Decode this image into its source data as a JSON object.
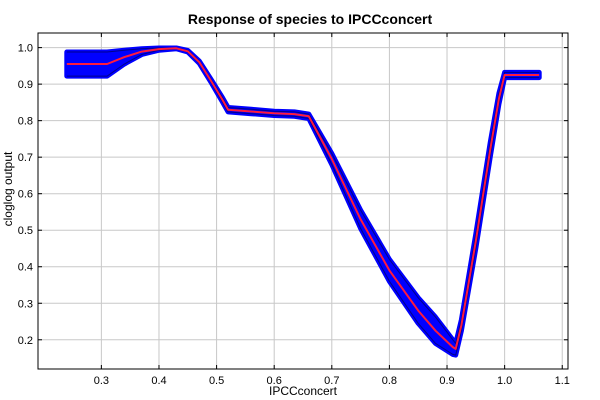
{
  "chart_data": {
    "type": "line",
    "title": "Response of species to IPCCconcert",
    "xlabel": "IPCCconcert",
    "ylabel": "cloglog output",
    "xlim": [
      0.19,
      1.11
    ],
    "ylim": [
      0.12,
      1.04
    ],
    "xticks": [
      0.3,
      0.4,
      0.5,
      0.6,
      0.7,
      0.8,
      0.9,
      1.0,
      1.1
    ],
    "xtick_labels": [
      "0.3",
      "0.4",
      "0.5",
      "0.6",
      "0.7",
      "0.8",
      "0.9",
      "1.0",
      "1.1"
    ],
    "yticks": [
      0.2,
      0.3,
      0.4,
      0.5,
      0.6,
      0.7,
      0.8,
      0.9,
      1.0
    ],
    "ytick_labels": [
      "0.2",
      "0.3",
      "0.4",
      "0.5",
      "0.6",
      "0.7",
      "0.8",
      "0.9",
      "1.0"
    ],
    "grid": true,
    "colors": {
      "mean": "#ff1a3c",
      "band": "#0000ff",
      "band_edge": "#00008b"
    },
    "series": [
      {
        "role": "mean",
        "x": [
          0.24,
          0.26,
          0.28,
          0.31,
          0.34,
          0.37,
          0.4,
          0.43,
          0.45,
          0.47,
          0.49,
          0.51,
          0.52,
          0.56,
          0.6,
          0.635,
          0.66,
          0.7,
          0.75,
          0.8,
          0.85,
          0.88,
          0.91,
          0.915,
          0.925,
          0.95,
          0.975,
          0.99,
          1.0,
          1.03,
          1.06
        ],
        "y": [
          0.955,
          0.955,
          0.955,
          0.955,
          0.974,
          0.989,
          0.996,
          0.998,
          0.99,
          0.96,
          0.91,
          0.858,
          0.83,
          0.825,
          0.82,
          0.818,
          0.812,
          0.695,
          0.53,
          0.39,
          0.28,
          0.225,
          0.18,
          0.175,
          0.24,
          0.47,
          0.72,
          0.86,
          0.925,
          0.925,
          0.925
        ]
      },
      {
        "role": "band_upper",
        "x": [
          0.24,
          0.26,
          0.28,
          0.31,
          0.34,
          0.37,
          0.4,
          0.43,
          0.45,
          0.47,
          0.49,
          0.51,
          0.52,
          0.56,
          0.6,
          0.635,
          0.66,
          0.7,
          0.75,
          0.8,
          0.85,
          0.88,
          0.91,
          0.915,
          0.925,
          0.95,
          0.975,
          0.99,
          1.0,
          1.03,
          1.06
        ],
        "y": [
          0.988,
          0.988,
          0.988,
          0.988,
          0.993,
          0.997,
          0.999,
          0.999,
          0.992,
          0.963,
          0.914,
          0.864,
          0.836,
          0.831,
          0.826,
          0.824,
          0.818,
          0.71,
          0.555,
          0.42,
          0.315,
          0.262,
          0.2,
          0.19,
          0.255,
          0.49,
          0.74,
          0.875,
          0.932,
          0.932,
          0.932
        ]
      },
      {
        "role": "band_lower",
        "x": [
          0.24,
          0.26,
          0.28,
          0.31,
          0.34,
          0.37,
          0.4,
          0.43,
          0.45,
          0.47,
          0.49,
          0.51,
          0.52,
          0.56,
          0.6,
          0.635,
          0.66,
          0.7,
          0.75,
          0.8,
          0.85,
          0.88,
          0.91,
          0.915,
          0.925,
          0.95,
          0.975,
          0.99,
          1.0,
          1.03,
          1.06
        ],
        "y": [
          0.922,
          0.922,
          0.922,
          0.922,
          0.955,
          0.981,
          0.993,
          0.997,
          0.988,
          0.957,
          0.906,
          0.852,
          0.824,
          0.819,
          0.814,
          0.812,
          0.806,
          0.68,
          0.505,
          0.36,
          0.245,
          0.19,
          0.16,
          0.158,
          0.225,
          0.45,
          0.7,
          0.845,
          0.918,
          0.918,
          0.918
        ]
      }
    ]
  }
}
